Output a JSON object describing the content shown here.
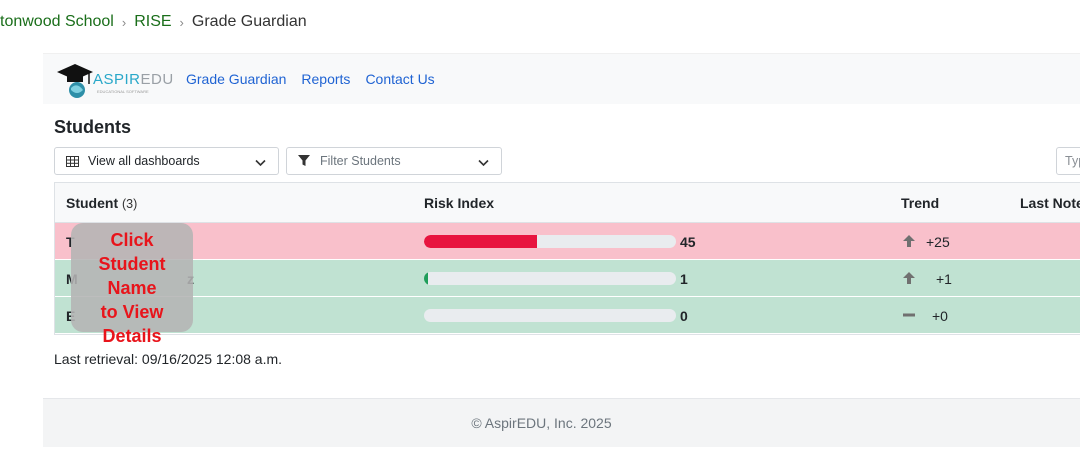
{
  "breadcrumb": {
    "items": [
      "tonwood School",
      "RISE"
    ],
    "current": "Grade Guardian"
  },
  "navbar": {
    "logo": {
      "aspir": "ASPIR",
      "edu": "EDU",
      "subtitle": "EDUCATIONAL SOFTWARE"
    },
    "links": [
      "Grade Guardian",
      "Reports",
      "Contact Us"
    ]
  },
  "page": {
    "title": "Students",
    "dashboards_dropdown": "View all dashboards",
    "filter_dropdown": "Filter Students",
    "search_placeholder": "Typ"
  },
  "table": {
    "headers": {
      "student": "Student",
      "student_count": "(3)",
      "risk": "Risk Index",
      "trend": "Trend",
      "notes": "Last Note"
    },
    "rows": [
      {
        "name": "T",
        "name_suffix": "",
        "risk": 45,
        "risk_label": "45",
        "trend": "+25",
        "trend_dir": "up",
        "row_color": "#f9c0cb",
        "bar_color": "#e8143f"
      },
      {
        "name": "M",
        "name_suffix": "z",
        "risk": 1,
        "risk_label": "1",
        "trend": "+1",
        "trend_dir": "up",
        "row_color": "#c0e2d2",
        "bar_color": "#1f9e5a"
      },
      {
        "name": "E",
        "name_suffix": "",
        "risk": 0,
        "risk_label": "0",
        "trend": "+0",
        "trend_dir": "flat",
        "row_color": "#c0e2d2",
        "bar_color": "#1f9e5a"
      }
    ]
  },
  "tooltip": {
    "lines": [
      "Click",
      "Student",
      "Name",
      "to View",
      "Details"
    ]
  },
  "last_retrieval": "Last retrieval: 09/16/2025 12:08 a.m.",
  "footer": {
    "copyright": "© AspirEDU, Inc. 2025"
  }
}
